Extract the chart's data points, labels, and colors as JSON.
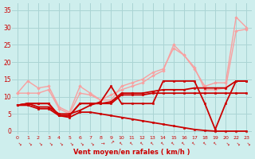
{
  "xlabel": "Vent moyen/en rafales ( km/h )",
  "background_color": "#ceeeed",
  "grid_color": "#aad4d4",
  "x_ticks": [
    0,
    1,
    2,
    3,
    4,
    5,
    6,
    7,
    8,
    9,
    10,
    11,
    12,
    13,
    14,
    15,
    16,
    17,
    18,
    19,
    20,
    22,
    23
  ],
  "x_positions": [
    0,
    1,
    2,
    3,
    4,
    5,
    6,
    7,
    8,
    9,
    10,
    11,
    12,
    13,
    14,
    15,
    16,
    17,
    18,
    19,
    20,
    21,
    22
  ],
  "ylim": [
    -1,
    37
  ],
  "yticks": [
    0,
    5,
    10,
    15,
    20,
    25,
    30,
    35
  ],
  "series": [
    {
      "y": [
        11,
        14.5,
        12.5,
        13,
        7,
        5.5,
        13,
        11,
        9,
        10.5,
        12,
        13,
        14,
        16,
        17.5,
        25,
        22,
        18,
        13,
        14,
        14,
        33,
        30
      ],
      "color": "#f8a0a0",
      "lw": 1.0,
      "marker": "D",
      "ms": 1.8,
      "zorder": 2
    },
    {
      "y": [
        11,
        11,
        11,
        12,
        6.5,
        5,
        11,
        10.5,
        9,
        9,
        13,
        14,
        15,
        17,
        18,
        24,
        22,
        18.5,
        12,
        12,
        12.5,
        29,
        29.5
      ],
      "color": "#f8a0a0",
      "lw": 1.0,
      "marker": "D",
      "ms": 1.8,
      "zorder": 2
    },
    {
      "y": [
        7.5,
        8,
        8,
        8,
        4.5,
        4.5,
        8,
        8,
        8,
        8,
        10.5,
        10.5,
        10.5,
        11,
        11,
        11,
        11,
        11,
        11,
        11,
        11,
        11,
        11
      ],
      "color": "#cc0000",
      "lw": 1.3,
      "marker": "s",
      "ms": 2.0,
      "zorder": 3
    },
    {
      "y": [
        7.5,
        8,
        8,
        8,
        4.5,
        4.5,
        8,
        8,
        8,
        8.5,
        11,
        11,
        11,
        11.5,
        12,
        12,
        12,
        12.5,
        12.5,
        12.5,
        12.5,
        14.5,
        14.5
      ],
      "color": "#cc0000",
      "lw": 1.3,
      "marker": "s",
      "ms": 2.0,
      "zorder": 3
    },
    {
      "y": [
        7.5,
        8,
        7,
        7,
        5,
        5,
        6,
        7.5,
        8.5,
        13,
        8,
        8,
        8,
        8,
        14.5,
        14.5,
        14.5,
        14.5,
        8,
        0.5,
        8,
        14.5,
        14.5
      ],
      "color": "#cc0000",
      "lw": 1.3,
      "marker": "s",
      "ms": 2.0,
      "zorder": 3
    },
    {
      "y": [
        7.5,
        7.5,
        6.5,
        6.5,
        4.5,
        4,
        5.5,
        5.5,
        5,
        4.5,
        4,
        3.5,
        3,
        2.5,
        2,
        1.5,
        1,
        0.5,
        0.2,
        0,
        0,
        0,
        0
      ],
      "color": "#cc0000",
      "lw": 1.3,
      "marker": "s",
      "ms": 2.0,
      "zorder": 3
    }
  ],
  "wind_arrows": {
    "angles": [
      225,
      225,
      225,
      225,
      225,
      225,
      225,
      225,
      270,
      315,
      45,
      45,
      45,
      45,
      45,
      45,
      45,
      45,
      45,
      45,
      225,
      225,
      225
    ],
    "y_data": -3.5,
    "color": "#cc0000",
    "fontsize": 4.5
  }
}
